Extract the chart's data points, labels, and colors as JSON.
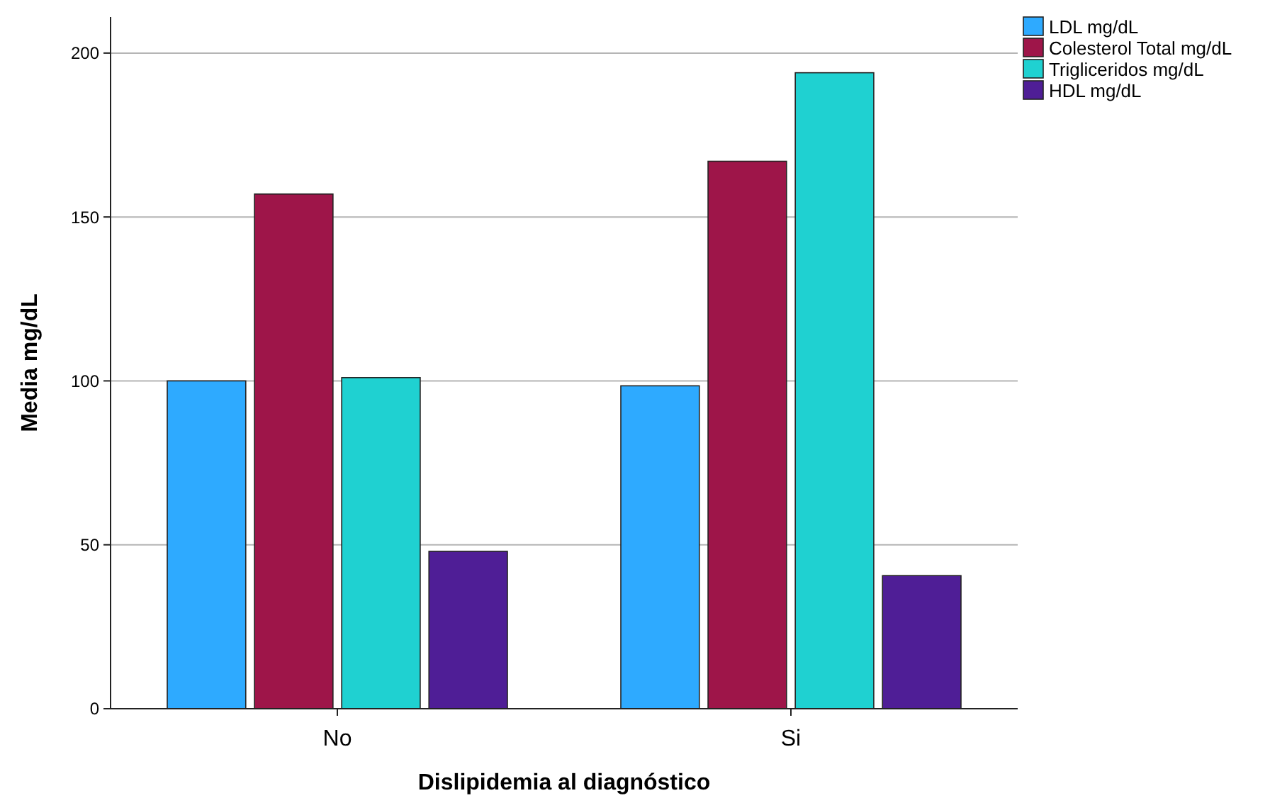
{
  "chart_data": {
    "type": "bar",
    "xlabel": "Dislipidemia al diagnóstico",
    "ylabel": "Media mg/dL",
    "categories": [
      "No",
      "Si"
    ],
    "series": [
      {
        "name": "LDL mg/dL",
        "color": "#2eaaff",
        "values": [
          100,
          98.5
        ]
      },
      {
        "name": "Colesterol Total mg/dL",
        "color": "#9e1549",
        "values": [
          157,
          167
        ]
      },
      {
        "name": "Trigliceridos mg/dL",
        "color": "#1fd1d1",
        "values": [
          101,
          194
        ]
      },
      {
        "name": "HDL mg/dL",
        "color": "#4f1e96",
        "values": [
          48,
          40.6
        ]
      }
    ],
    "ylim": [
      0,
      211
    ],
    "yticks": [
      0,
      50,
      100,
      150,
      200
    ],
    "grid": "y",
    "legend": "top right"
  }
}
